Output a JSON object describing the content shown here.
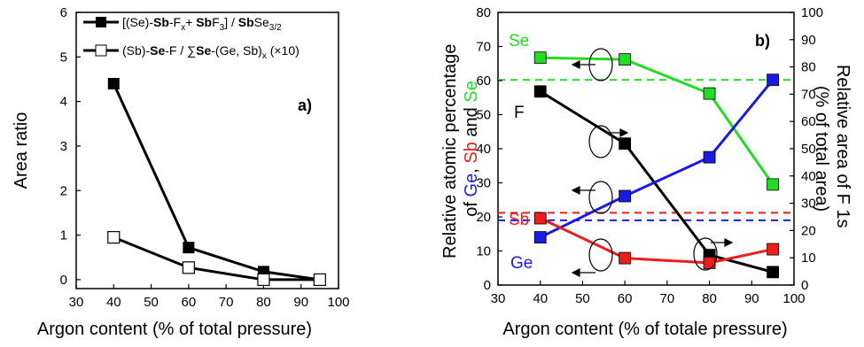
{
  "chart_data": [
    {
      "type": "line",
      "panel_label": "a)",
      "xlabel": "Argon content (% of total pressure)",
      "ylabel": "Area ratio",
      "xlim": [
        30,
        100
      ],
      "ylim": [
        -0.2,
        6
      ],
      "xticks": [
        30,
        40,
        50,
        60,
        70,
        80,
        90,
        100
      ],
      "yticks": [
        0,
        1,
        2,
        3,
        4,
        5,
        6
      ],
      "legend": "top-left",
      "series": [
        {
          "name_parts": [
            "[(Se)-",
            "Sb",
            "-F",
            "x",
            "+ ",
            "Sb",
            "F",
            "3",
            "] / ",
            "Sb",
            "Se",
            "3/2"
          ],
          "marker": "filled-square",
          "color": "#000000",
          "x": [
            40,
            60,
            80,
            95
          ],
          "y": [
            4.4,
            0.72,
            0.18,
            0.0
          ]
        },
        {
          "name_parts": [
            "(Sb)-",
            "Se",
            "-F / ∑",
            "Se",
            "-(Ge, Sb)",
            "x",
            " (×10)"
          ],
          "marker": "open-square",
          "color": "#000000",
          "x": [
            40,
            60,
            80,
            95
          ],
          "y": [
            0.95,
            0.27,
            0.0,
            0.0
          ]
        }
      ]
    },
    {
      "type": "line",
      "panel_label": "b)",
      "xlabel": "Argon content (% of totale pressure)",
      "ylabel_parts": [
        "Relative atomic percentage",
        "of ",
        "Ge",
        ", ",
        "Sb",
        " and ",
        "Se"
      ],
      "y2label_parts": [
        "Relative area of F 1s",
        "(% of total area)"
      ],
      "xlim": [
        30,
        100
      ],
      "ylim": [
        0,
        80
      ],
      "y2lim": [
        0,
        100
      ],
      "xticks": [
        30,
        40,
        50,
        60,
        70,
        80,
        90,
        100
      ],
      "yticks": [
        0,
        10,
        20,
        30,
        40,
        50,
        60,
        70,
        80
      ],
      "y2ticks": [
        0,
        10,
        20,
        30,
        40,
        50,
        60,
        70,
        80,
        90,
        100
      ],
      "series": [
        {
          "name": "Se",
          "color": "#22dd22",
          "axis": "left",
          "x": [
            40,
            60,
            80,
            95
          ],
          "y": [
            66.7,
            66.2,
            56.2,
            29.5
          ]
        },
        {
          "name": "F",
          "color": "#000000",
          "axis": "left",
          "x": [
            40,
            60,
            80,
            95
          ],
          "y": [
            56.8,
            41.5,
            8.8,
            3.8
          ]
        },
        {
          "name": "Ge",
          "color": "#1a1ae6",
          "axis": "left",
          "x": [
            40,
            60,
            80,
            95
          ],
          "y": [
            14.0,
            26.1,
            37.5,
            60.2
          ]
        },
        {
          "name": "Sb",
          "color": "#ee1c1c",
          "axis": "left",
          "x": [
            40,
            60,
            80,
            95
          ],
          "y": [
            19.6,
            7.9,
            6.5,
            10.5
          ]
        }
      ],
      "reference_lines": [
        {
          "color": "#22dd22",
          "y": 60.2
        },
        {
          "color": "#ee1c1c",
          "y": 21.2
        },
        {
          "color": "#1a1ae6",
          "y": 19.0
        }
      ]
    }
  ]
}
